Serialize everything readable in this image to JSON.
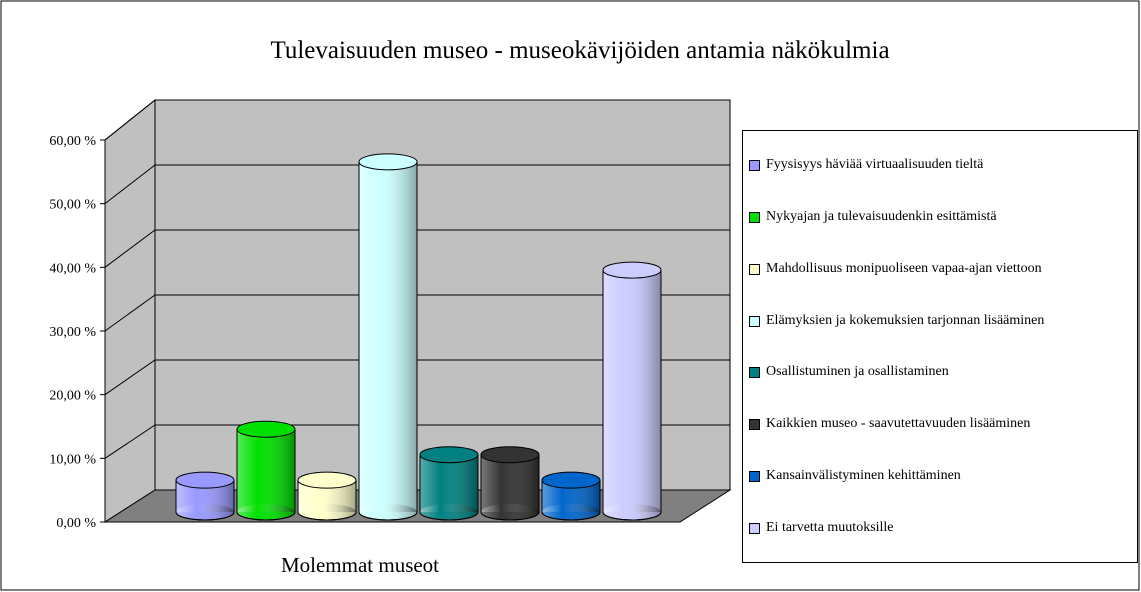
{
  "chart_data": {
    "type": "bar3d",
    "title": "Tulevaisuuden museo - museokävijöiden antamia näkökulmia",
    "categories": [
      "Molemmat museot"
    ],
    "ylim": [
      0,
      60
    ],
    "yticks": [
      {
        "value": 0,
        "label": "0,00 %"
      },
      {
        "value": 10,
        "label": "10,00 %"
      },
      {
        "value": 20,
        "label": "20,00 %"
      },
      {
        "value": 30,
        "label": "30,00 %"
      },
      {
        "value": 40,
        "label": "40,00 %"
      },
      {
        "value": 50,
        "label": "50,00 %"
      },
      {
        "value": 60,
        "label": "60,00 %"
      }
    ],
    "grid": true,
    "legend": "right",
    "series": [
      {
        "name": "Fyysisyys häviää virtuaalisuuden tieltä",
        "color": "#9999ff",
        "values": [
          5
        ]
      },
      {
        "name": "Nykyajan ja tulevaisuudenkin esittämistä",
        "color": "#00e000",
        "values": [
          13
        ]
      },
      {
        "name": "Mahdollisuus monipuoliseen vapaa-ajan viettoon",
        "color": "#ffffcc",
        "values": [
          5
        ]
      },
      {
        "name": "Elämyksien ja kokemuksien tarjonnan lisääminen",
        "color": "#ccffff",
        "values": [
          55
        ]
      },
      {
        "name": "Osallistuminen ja osallistaminen",
        "color": "#008080",
        "values": [
          9
        ]
      },
      {
        "name": "Kaikkien museo - saavutettavuuden lisääminen",
        "color": "#333333",
        "values": [
          9
        ]
      },
      {
        "name": "Kansainvälistyminen kehittäminen",
        "color": "#0066cc",
        "values": [
          5
        ]
      },
      {
        "name": "Ei tarvetta muutoksille",
        "color": "#ccccff",
        "values": [
          38
        ]
      }
    ]
  }
}
